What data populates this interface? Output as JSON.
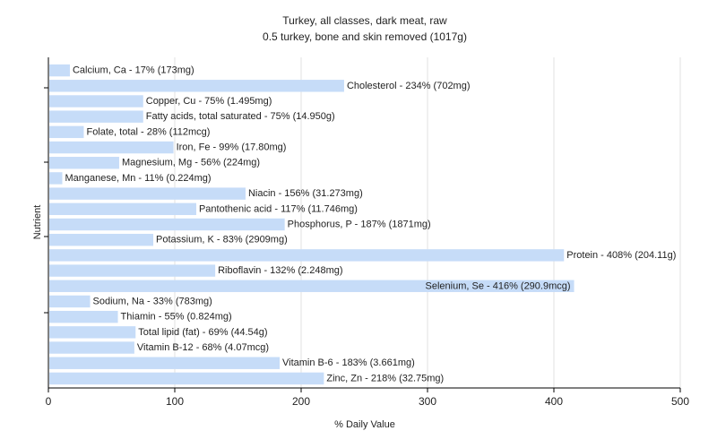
{
  "chart_data": {
    "type": "bar",
    "orientation": "horizontal",
    "title": "Turkey, all classes, dark meat, raw",
    "subtitle": "0.5 turkey, bone and skin removed (1017g)",
    "xlabel": "% Daily Value",
    "ylabel": "Nutrient",
    "xlim": [
      0,
      500
    ],
    "xticks": [
      "0",
      "100",
      "200",
      "300",
      "400",
      "500"
    ],
    "grid": true,
    "legend": "none",
    "bar_color": "#c6dcf8",
    "categories": [
      "Calcium, Ca",
      "Cholesterol",
      "Copper, Cu",
      "Fatty acids, total saturated",
      "Folate, total",
      "Iron, Fe",
      "Magnesium, Mg",
      "Manganese, Mn",
      "Niacin",
      "Pantothenic acid",
      "Phosphorus, P",
      "Potassium, K",
      "Protein",
      "Riboflavin",
      "Selenium, Se",
      "Sodium, Na",
      "Thiamin",
      "Total lipid (fat)",
      "Vitamin B-12",
      "Vitamin B-6",
      "Zinc, Zn"
    ],
    "values": [
      17,
      234,
      75,
      75,
      28,
      99,
      56,
      11,
      156,
      117,
      187,
      83,
      408,
      132,
      416,
      33,
      55,
      69,
      68,
      183,
      218
    ],
    "labels": [
      "Calcium, Ca - 17% (173mg)",
      "Cholesterol - 234% (702mg)",
      "Copper, Cu - 75% (1.495mg)",
      "Fatty acids, total saturated - 75% (14.950g)",
      "Folate, total - 28% (112mcg)",
      "Iron, Fe - 99% (17.80mg)",
      "Magnesium, Mg - 56% (224mg)",
      "Manganese, Mn - 11% (0.224mg)",
      "Niacin - 156% (31.273mg)",
      "Pantothenic acid - 117% (11.746mg)",
      "Phosphorus, P - 187% (1871mg)",
      "Potassium, K - 83% (2909mg)",
      "Protein - 408% (204.11g)",
      "Riboflavin - 132% (2.248mg)",
      "Selenium, Se - 416% (290.9mcg)",
      "Sodium, Na - 33% (783mg)",
      "Thiamin - 55% (0.824mg)",
      "Total lipid (fat) - 69% (44.54g)",
      "Vitamin B-12 - 68% (4.07mcg)",
      "Vitamin B-6 - 183% (3.661mg)",
      "Zinc, Zn - 218% (32.75mg)"
    ]
  }
}
